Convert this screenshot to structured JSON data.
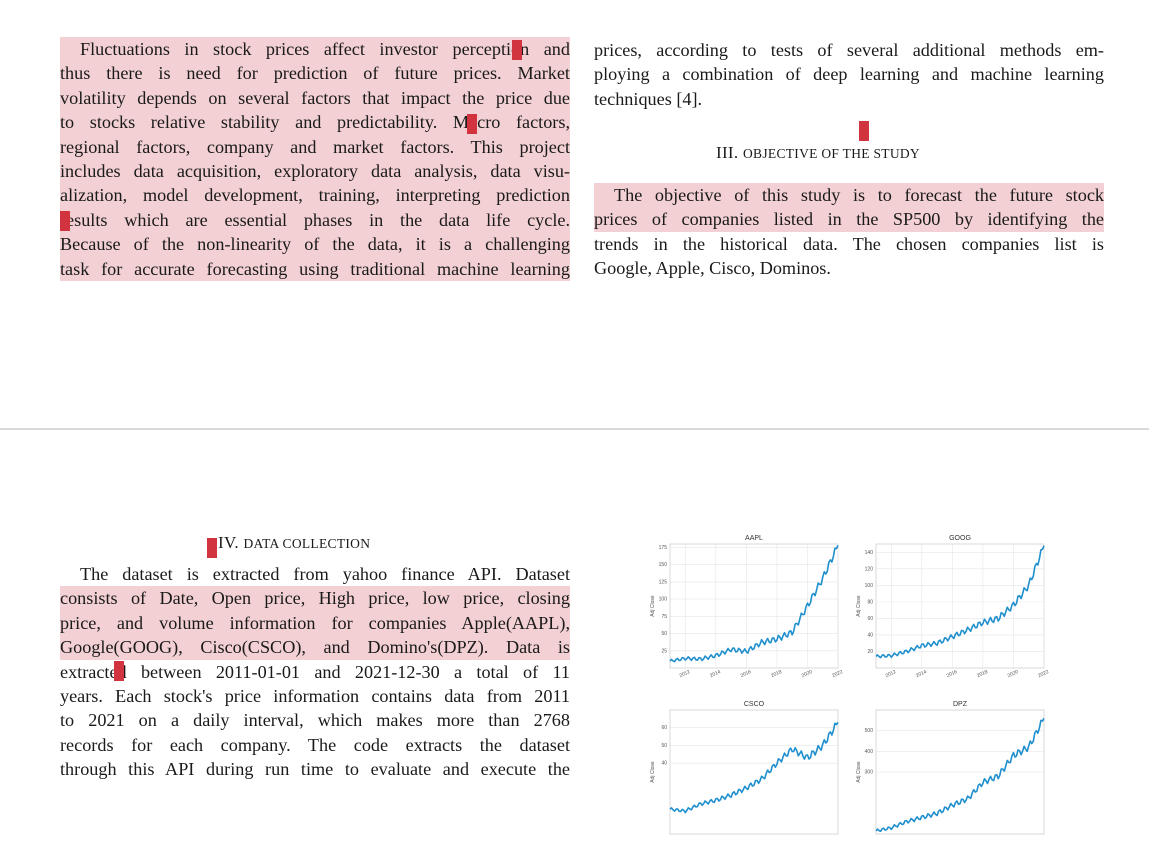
{
  "top_page": {
    "left_lines": [
      "Fluctuations in stock prices affect investor perception and",
      "thus there is need for prediction of future prices. Market",
      "volatility depends on several factors that impact the price due",
      "to stocks relative stability and predictability. Macro factors,",
      "regional factors, company and market factors. This project",
      "includes data acquisition, exploratory data analysis, data visu-",
      "alization, model development, training, interpreting prediction",
      "results which are essential phases in the data life cycle.",
      "Because of the non-linearity of the data, it is a challenging",
      "task for accurate forecasting using traditional machine learning"
    ],
    "right_lines": [
      "prices, according to tests of several additional methods em-",
      "ploying a combination of deep learning and machine learning",
      "techniques [4]."
    ],
    "section3": {
      "numeral": "III.",
      "title": "Objective of the Study"
    },
    "objective_lines": [
      "The objective of this study is to forecast the future stock",
      "prices of companies listed in the SP500 by identifying the",
      "trends in the historical data. The chosen companies list is",
      "Google, Apple, Cisco, Dominos."
    ]
  },
  "bottom_page": {
    "section4": {
      "numeral": "IV.",
      "title": "Data Collection"
    },
    "lines": [
      "The dataset is extracted from yahoo finance API. Dataset",
      "consists of Date, Open price, High price, low price, closing",
      "price, and volume information for companies Apple(AAPL),",
      "Google(GOOG), Cisco(CSCO), and Domino's(DPZ). Data is",
      "extracted between 2011-01-01 and 2021-12-30 a total of 11",
      "years. Each stock's price information contains data from 2011",
      "to 2021 on a daily interval, which makes more than 2768",
      "records for each company. The code extracts the dataset",
      "through this API during run time to evaluate and execute the"
    ]
  },
  "chart_data": [
    {
      "type": "line",
      "title": "AAPL",
      "ylabel": "Adj Close",
      "x": [
        2011,
        2012,
        2013,
        2014,
        2015,
        2016,
        2017,
        2018,
        2019,
        2020,
        2021,
        2022
      ],
      "values": [
        10,
        14,
        13,
        18,
        27,
        24,
        37,
        42,
        52,
        90,
        130,
        178
      ],
      "ylim": [
        0,
        180
      ],
      "yticks": [
        "25",
        "50",
        "75",
        "100",
        "125",
        "150",
        "175"
      ],
      "xticks": [
        "2012",
        "2014",
        "2016",
        "2018",
        "2020",
        "2022"
      ],
      "grid": true,
      "color": "#1f8fce"
    },
    {
      "type": "line",
      "title": "GOOG",
      "ylabel": "Adj Close",
      "x": [
        2011,
        2012,
        2013,
        2014,
        2015,
        2016,
        2017,
        2018,
        2019,
        2020,
        2021,
        2022
      ],
      "values": [
        14,
        15,
        20,
        27,
        30,
        38,
        46,
        55,
        60,
        76,
        100,
        148
      ],
      "ylim": [
        0,
        150
      ],
      "yticks": [
        "20",
        "40",
        "60",
        "80",
        "100",
        "120",
        "140"
      ],
      "xticks": [
        "2012",
        "2014",
        "2016",
        "2018",
        "2020",
        "2022"
      ],
      "grid": true,
      "color": "#1f8fce"
    },
    {
      "type": "line",
      "title": "CSCO",
      "ylabel": "Adj Close",
      "x": [
        2011,
        2012,
        2013,
        2014,
        2015,
        2016,
        2017,
        2018,
        2019,
        2020,
        2021,
        2022
      ],
      "values": [
        14,
        13,
        17,
        19,
        22,
        26,
        31,
        40,
        48,
        43,
        50,
        63
      ],
      "ylim": [
        0,
        70
      ],
      "yticks": [
        "40",
        "50",
        "60"
      ],
      "xticks": [],
      "grid": true,
      "color": "#1f8fce"
    },
    {
      "type": "line",
      "title": "DPZ",
      "ylabel": "Adj Close",
      "x": [
        2011,
        2012,
        2013,
        2014,
        2015,
        2016,
        2017,
        2018,
        2019,
        2020,
        2021,
        2022
      ],
      "values": [
        15,
        30,
        60,
        80,
        100,
        140,
        170,
        250,
        280,
        380,
        420,
        560
      ],
      "ylim": [
        0,
        600
      ],
      "yticks": [
        "300",
        "400",
        "500"
      ],
      "xticks": [],
      "grid": true,
      "color": "#1f8fce"
    }
  ]
}
